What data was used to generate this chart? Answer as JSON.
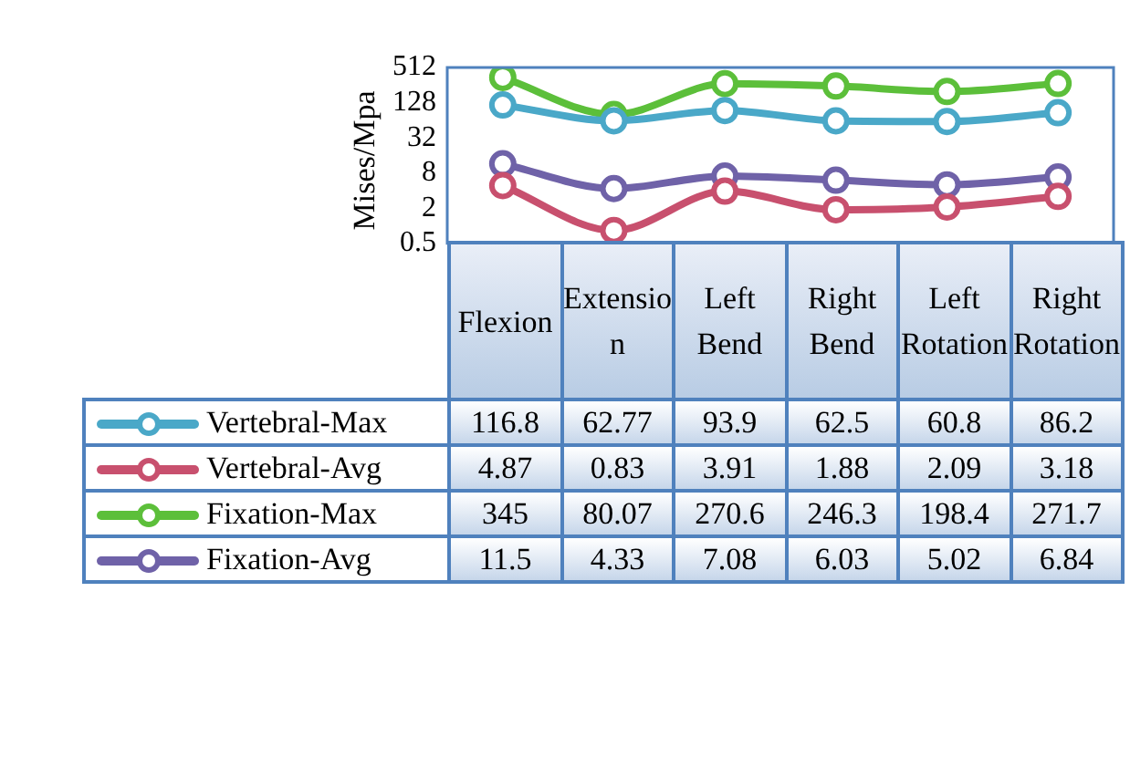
{
  "chart_data": {
    "type": "line",
    "ylabel": "Mises/Mpa",
    "log": true,
    "ylim": [
      0.5,
      512
    ],
    "yticks": [
      0.5,
      2,
      8,
      32,
      128,
      512
    ],
    "categories": [
      "Flexion",
      "Extension",
      "Left Bend",
      "Right Bend",
      "Left Rotation",
      "Right Rotation"
    ],
    "series": [
      {
        "name": "Vertebral-Max",
        "color": "#4aa8c8",
        "values": [
          116.8,
          62.77,
          93.9,
          62.5,
          60.8,
          86.2
        ]
      },
      {
        "name": "Vertebral-Avg",
        "color": "#c8506e",
        "values": [
          4.87,
          0.83,
          3.91,
          1.88,
          2.09,
          3.18
        ]
      },
      {
        "name": "Fixation-Max",
        "color": "#5cbf3a",
        "values": [
          345,
          80.07,
          270.6,
          246.3,
          198.4,
          271.7
        ]
      },
      {
        "name": "Fixation-Avg",
        "color": "#6f62a8",
        "values": [
          11.5,
          4.33,
          7.08,
          6.03,
          5.02,
          6.84
        ]
      }
    ],
    "marker": "circle",
    "legend": "bottom",
    "data_labels": true
  }
}
